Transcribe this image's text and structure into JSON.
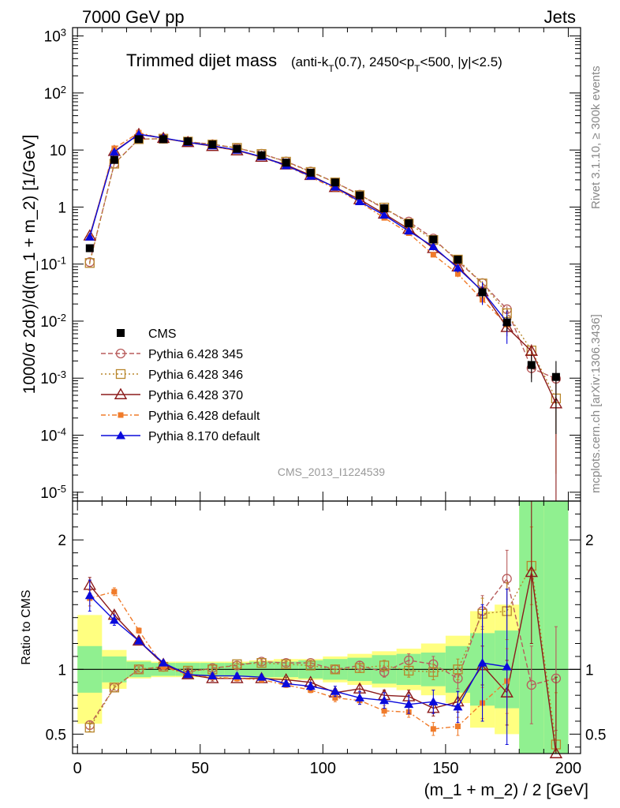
{
  "header": {
    "left": "7000 GeV pp",
    "right": "Jets",
    "side_top": "Rivet 3.1.10, ≥ 300k events",
    "side_bottom": "mcplots.cern.ch [arXiv:1306.3436]",
    "analysis_id": "CMS_2013_I1224539"
  },
  "chart_data": {
    "type": "line",
    "title": "Trimmed dijet mass",
    "title_suffix": "(anti-k_T(0.7), 2450<p_T<500, |y|<2.5)",
    "xlabel": "(m_1 + m_2) / 2 [GeV]",
    "ylabel": "1000/σ 2dσ)/d(m_1 + m_2) [1/GeV]",
    "ratio_ylabel": "Ratio to CMS",
    "xlim": [
      -2,
      205
    ],
    "ylim": [
      7e-06,
      1400.0
    ],
    "yscale": "log",
    "ratio_ylim": [
      0.35,
      2.3
    ],
    "x_ticks": [
      "0",
      "50",
      "100",
      "150",
      "200"
    ],
    "y_ticks": [
      "10^-5",
      "10^-4",
      "10^-3",
      "10^-2",
      "10^-1",
      "1",
      "10",
      "10^2",
      "10^3"
    ],
    "ratio_ticks": [
      "0.5",
      "1",
      "2"
    ],
    "legend_position": "lower-left",
    "x": [
      5,
      15,
      25,
      35,
      45,
      55,
      65,
      75,
      85,
      95,
      105,
      115,
      125,
      135,
      145,
      155,
      165,
      175,
      185,
      195
    ],
    "cms": {
      "name": "CMS",
      "values": [
        0.19,
        6.7,
        15.5,
        15.5,
        14.2,
        12.5,
        10.5,
        8.1,
        6.0,
        4.0,
        2.7,
        1.6,
        0.95,
        0.52,
        0.27,
        0.12,
        0.032,
        0.0095,
        0.0017,
        0.00105
      ],
      "err_rel": [
        0.1,
        0.05,
        0.05,
        0.05,
        0.05,
        0.05,
        0.05,
        0.05,
        0.05,
        0.05,
        0.06,
        0.06,
        0.07,
        0.08,
        0.09,
        0.12,
        0.2,
        0.3,
        0.5,
        0.9
      ]
    },
    "band_inner": [
      0.18,
      0.1,
      0.06,
      0.05,
      0.05,
      0.05,
      0.05,
      0.06,
      0.06,
      0.07,
      0.08,
      0.09,
      0.11,
      0.12,
      0.13,
      0.18,
      0.28,
      0.3,
      1.4,
      1.3
    ],
    "band_outer": [
      0.42,
      0.15,
      0.07,
      0.06,
      0.06,
      0.06,
      0.06,
      0.07,
      0.08,
      0.08,
      0.1,
      0.12,
      0.14,
      0.16,
      0.2,
      0.26,
      0.45,
      0.5,
      2.0,
      2.0
    ],
    "series": [
      {
        "name": "Pythia 6.428 345",
        "color": "#b85c5c",
        "marker": "circle-open",
        "dash": "6,3",
        "ratio": [
          0.57,
          0.86,
          1.0,
          1.02,
          0.98,
          1.01,
          1.03,
          1.06,
          1.05,
          1.05,
          1.0,
          1.03,
          0.98,
          1.07,
          1.04,
          0.93,
          1.45,
          1.7,
          0.88,
          0.93
        ],
        "ratio_err": [
          0.03,
          0.02,
          0.02,
          0.02,
          0.02,
          0.02,
          0.02,
          0.02,
          0.02,
          0.02,
          0.03,
          0.03,
          0.04,
          0.05,
          0.06,
          0.08,
          0.12,
          0.22,
          0.3,
          0.4
        ]
      },
      {
        "name": "Pythia 6.428 346",
        "color": "#b8862b",
        "marker": "square-open",
        "dash": "2,3",
        "ratio": [
          0.55,
          0.86,
          1.0,
          1.02,
          0.99,
          1.0,
          1.04,
          1.05,
          1.04,
          1.03,
          1.0,
          1.01,
          1.03,
          0.99,
          0.98,
          1.0,
          1.43,
          1.45,
          1.8,
          0.42
        ],
        "ratio_err": [
          0.03,
          0.02,
          0.02,
          0.02,
          0.02,
          0.02,
          0.02,
          0.02,
          0.02,
          0.02,
          0.03,
          0.03,
          0.04,
          0.05,
          0.06,
          0.08,
          0.12,
          0.22,
          0.3,
          0.4
        ]
      },
      {
        "name": "Pythia 6.428 370",
        "color": "#8b1a1a",
        "marker": "triangle-open",
        "dash": "",
        "ratio": [
          1.65,
          1.42,
          1.22,
          1.04,
          0.96,
          0.93,
          0.93,
          0.93,
          0.92,
          0.9,
          0.82,
          0.85,
          0.8,
          0.79,
          0.7,
          0.75,
          1.03,
          0.82,
          1.75,
          0.34
        ],
        "ratio_err": [
          0.06,
          0.03,
          0.02,
          0.02,
          0.02,
          0.02,
          0.02,
          0.02,
          0.02,
          0.02,
          0.03,
          0.03,
          0.04,
          0.05,
          0.06,
          0.08,
          0.15,
          0.25,
          0.55,
          0.6
        ]
      },
      {
        "name": "Pythia 6.428 default",
        "color": "#f07b2a",
        "marker": "square-filled",
        "dash": "6,3,2,3",
        "ratio": [
          1.55,
          1.6,
          1.3,
          1.02,
          0.96,
          0.94,
          0.93,
          0.92,
          0.88,
          0.84,
          0.78,
          0.76,
          0.68,
          0.67,
          0.54,
          0.56,
          0.74,
          0.91,
          0.0,
          0.0
        ],
        "ratio_err": [
          0.06,
          0.03,
          0.02,
          0.02,
          0.02,
          0.02,
          0.02,
          0.02,
          0.02,
          0.02,
          0.03,
          0.03,
          0.04,
          0.04,
          0.05,
          0.07,
          0.12,
          0.25,
          0.0,
          0.0
        ]
      },
      {
        "name": "Pythia 8.170 default",
        "color": "#0a0adc",
        "marker": "triangle-filled",
        "dash": "",
        "ratio": [
          1.57,
          1.38,
          1.22,
          1.05,
          0.96,
          0.95,
          0.95,
          0.94,
          0.89,
          0.87,
          0.83,
          0.78,
          0.76,
          0.73,
          0.75,
          0.71,
          1.05,
          1.02,
          0.0,
          0.0
        ],
        "ratio_err": [
          0.12,
          0.04,
          0.02,
          0.02,
          0.02,
          0.02,
          0.02,
          0.02,
          0.02,
          0.03,
          0.04,
          0.05,
          0.06,
          0.07,
          0.09,
          0.12,
          0.45,
          0.6,
          0.0,
          0.0
        ]
      }
    ]
  }
}
